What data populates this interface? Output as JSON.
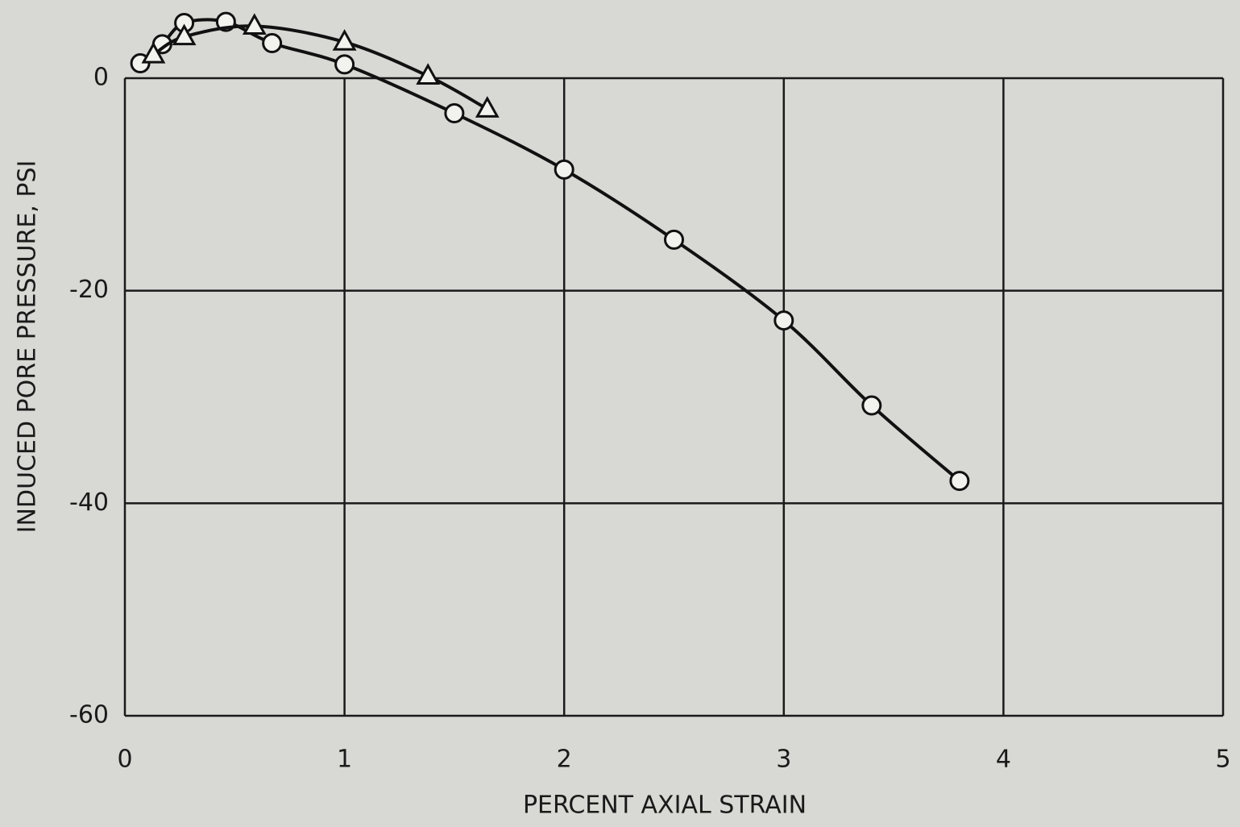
{
  "chart_data": {
    "type": "line",
    "x_label": "PERCENT AXIAL STRAIN",
    "y_label": "INDUCED PORE PRESSURE, PSI",
    "xlim": [
      0,
      5
    ],
    "xticks": [
      0,
      1,
      2,
      3,
      4,
      5
    ],
    "ylim": [
      -60,
      0
    ],
    "yticks": [
      0,
      -20,
      -40,
      -60
    ],
    "grid": true,
    "series": [
      {
        "marker": "circle",
        "color": "#111111",
        "x": [
          0.07,
          0.17,
          0.27,
          0.46,
          0.67,
          1.0,
          1.5,
          2.0,
          2.5,
          3.0,
          3.4,
          3.8
        ],
        "values": [
          1.4,
          3.2,
          5.2,
          5.3,
          3.3,
          1.3,
          -3.3,
          -8.6,
          -15.2,
          -22.8,
          -30.8,
          -37.9
        ]
      },
      {
        "marker": "triangle",
        "color": "#111111",
        "x": [
          0.13,
          0.27,
          0.59,
          1.0,
          1.38,
          1.65
        ],
        "values": [
          2.2,
          3.9,
          4.9,
          3.4,
          0.2,
          -2.9
        ]
      }
    ]
  }
}
